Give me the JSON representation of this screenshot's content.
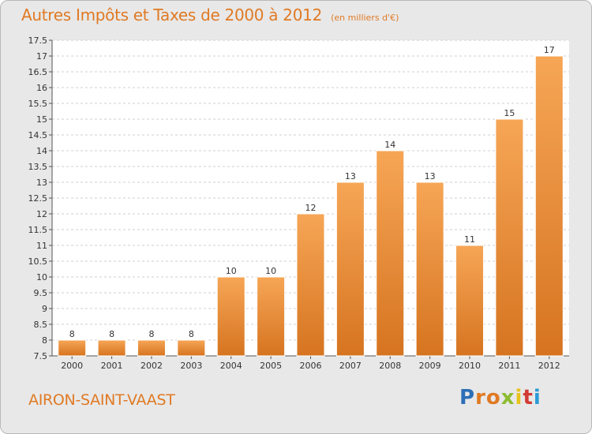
{
  "title": "Autres Impôts et Taxes de 2000 à 2012",
  "subtitle": "(en milliers d'€)",
  "footer_name": "AIRON-SAINT-VAAST",
  "logo": {
    "letters": [
      "P",
      "r",
      "o",
      "x",
      "i",
      "t",
      "i"
    ],
    "colors": [
      "#2b6fb6",
      "#e07a24",
      "#e07a24",
      "#8dbb2f",
      "#e8c21c",
      "#d13b34",
      "#2b9bd6"
    ]
  },
  "colors": {
    "bar_top": "#f6a656",
    "bar_bottom": "#d67420",
    "accent": "#e07a24",
    "plot_bg": "#e8e8e8"
  },
  "chart_data": {
    "type": "bar",
    "categories": [
      "2000",
      "2001",
      "2002",
      "2003",
      "2004",
      "2005",
      "2006",
      "2007",
      "2008",
      "2009",
      "2010",
      "2011",
      "2012"
    ],
    "values": [
      8,
      8,
      8,
      8,
      10,
      10,
      12,
      13,
      14,
      13,
      11,
      15,
      17
    ],
    "data_labels": [
      "8",
      "8",
      "8",
      "8",
      "10",
      "10",
      "12",
      "13",
      "14",
      "13",
      "11",
      "15",
      "17"
    ],
    "y_ticks": [
      7.5,
      8,
      8.5,
      9,
      9.5,
      10,
      10.5,
      11,
      11.5,
      12,
      12.5,
      13,
      13.5,
      14,
      14.5,
      15,
      15.5,
      16,
      16.5,
      17,
      17.5
    ],
    "ylim": [
      7.5,
      17.5
    ],
    "grid": "horizontal dashed"
  }
}
